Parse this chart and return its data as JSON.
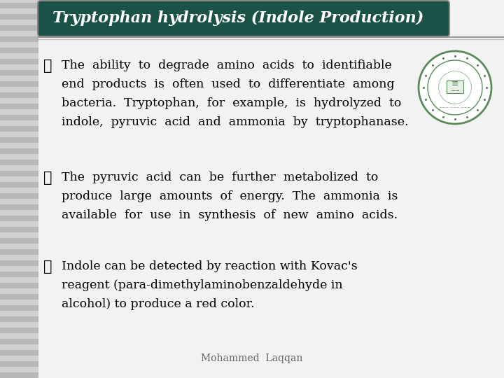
{
  "title": "Tryptophan hydrolysis (Indole Production)",
  "title_bg_color": "#1b5247",
  "title_text_color": "#ffffff",
  "bg_color": "#c8c8c8",
  "content_bg_color": "#f2f2f2",
  "bullet_char": "❖",
  "bullet1_lines": [
    "The  ability  to  degrade  amino  acids  to  identifiable",
    "end  products  is  often  used  to  differentiate  among",
    "bacteria.  Tryptophan,  for  example,  is  hydrolyzed  to",
    "indole,  pyruvic  acid  and  ammonia  by  tryptophanase."
  ],
  "bullet2_lines": [
    "The  pyruvic  acid  can  be  further  metabolized  to",
    "produce  large  amounts  of  energy.  The  ammonia  is",
    "available  for  use  in  synthesis  of  new  amino  acids."
  ],
  "bullet3_lines": [
    "Indole can be detected by reaction with Kovac's",
    "reagent (para-dimethylaminobenzaldehyde in",
    "alcohol) to produce a red color."
  ],
  "footer": "Mohammed  Laqqan",
  "text_color": "#000000",
  "footer_color": "#666666",
  "stripe_color": "#bbbbbb",
  "title_border_color": "#888888"
}
